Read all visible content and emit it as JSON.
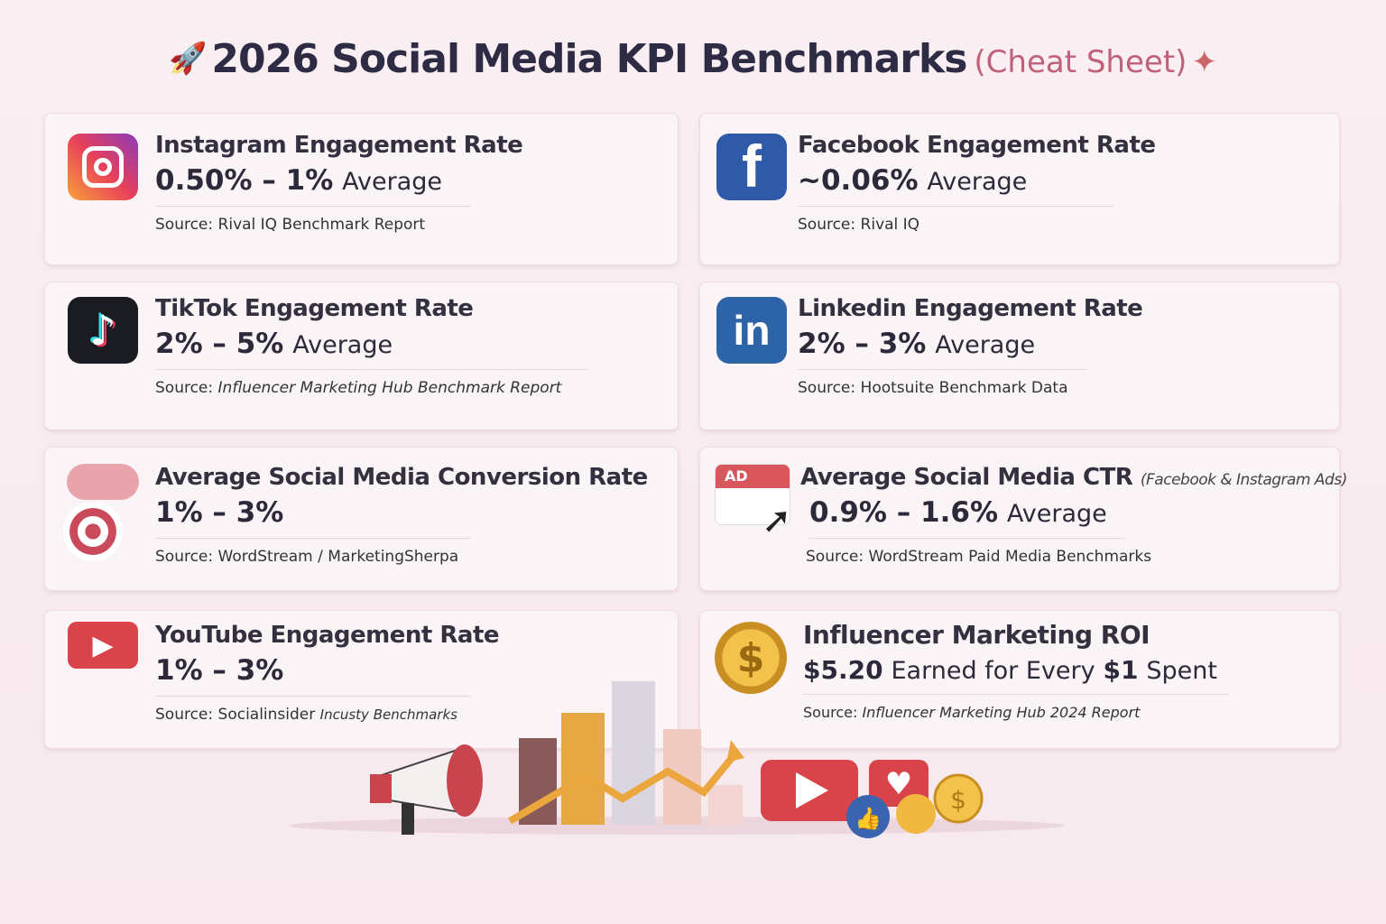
{
  "title": {
    "main": "2026 Social Media KPI Benchmarks",
    "sub": "(Cheat Sheet)"
  },
  "cards": [
    {
      "id": "instagram",
      "icon": "instagram-icon",
      "heading": "Instagram Engagement Rate",
      "value": "0.50% – 1%",
      "suffix": "Average",
      "source_label": "Source:",
      "source": "Rival IQ Benchmark Report",
      "source_italic": ""
    },
    {
      "id": "facebook",
      "icon": "facebook-icon",
      "heading": "Facebook Engagement Rate",
      "value": "~0.06%",
      "suffix": "Average",
      "source_label": "Source:",
      "source": "Rival IQ",
      "source_italic": ""
    },
    {
      "id": "tiktok",
      "icon": "tiktok-icon",
      "heading": "TikTok Engagement Rate",
      "value": "2% – 5%",
      "suffix": "Average",
      "source_label": "Source:",
      "source": "",
      "source_italic": "Influencer Marketing Hub  Benchmark Report"
    },
    {
      "id": "linkedin",
      "icon": "linkedin-icon",
      "heading": "Linkedin Engagement Rate",
      "value": "2% – 3%",
      "suffix": "Average",
      "source_label": "Source:",
      "source": "Hootsuite Benchmark Data",
      "source_italic": ""
    },
    {
      "id": "conversion",
      "icon": "target-icon",
      "heading": "Average Social Media Conversion Rate",
      "value": "1% – 3%",
      "suffix": "",
      "source_label": "Source:",
      "source": "WordStream / MarketingSherpa",
      "source_italic": ""
    },
    {
      "id": "ctr",
      "icon": "ad-click-icon",
      "heading": "Average Social Media CTR",
      "note": "(Facebook & Instagram Ads)",
      "value": "0.9% – 1.6%",
      "suffix": "Average",
      "source_label": "Source:",
      "source": "WordStream Paid Media Benchmarks",
      "source_italic": ""
    },
    {
      "id": "youtube",
      "icon": "youtube-icon",
      "heading": "YouTube Engagement Rate",
      "value": "1% – 3%",
      "suffix": "",
      "source_label": "Source:",
      "source": "Socialinsider",
      "source_italic": "Incusty Benchmarks"
    },
    {
      "id": "roi",
      "icon": "dollar-coin-icon",
      "heading": "Influencer Marketing ROI",
      "value": "$5.20",
      "suffix": "Earned for Every",
      "value2": "$1",
      "suffix2": "Spent",
      "source_label": "Source:",
      "source": "",
      "source_italic": "Influencer Marketing Hub 2024 Report"
    }
  ],
  "icons": {
    "ad_label": "AD"
  },
  "colors": {
    "accent": "#c0607a",
    "facebook": "#2f5aa8",
    "linkedin": "#2d64a8",
    "youtube": "#d9434a",
    "tiktok": "#1b1b22"
  }
}
